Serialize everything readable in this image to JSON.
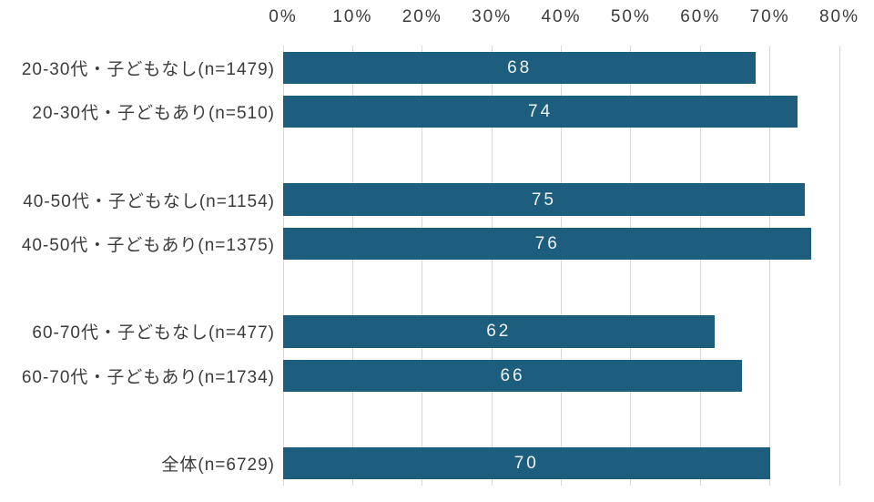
{
  "chart_data": {
    "type": "bar",
    "orientation": "horizontal",
    "categories": [
      "20-30代・子どもなし(n=1479)",
      "20-30代・子どもあり(n=510)",
      "40-50代・子どもなし(n=1154)",
      "40-50代・子どもあり(n=1375)",
      "60-70代・子どもなし(n=477)",
      "60-70代・子どもあり(n=1734)",
      "全体(n=6729)"
    ],
    "values": [
      68,
      74,
      75,
      76,
      62,
      66,
      70
    ],
    "spacer_after": [
      1,
      3,
      5
    ],
    "x_ticks": [
      "0%",
      "10%",
      "20%",
      "30%",
      "40%",
      "50%",
      "60%",
      "70%",
      "80%"
    ],
    "xlim": [
      0,
      80
    ],
    "xlabel": "",
    "ylabel": "",
    "title": "",
    "legend": "none",
    "grid": "vertical",
    "axis_position": "top",
    "colors": {
      "bar": "#1d5e7e",
      "value_label": "#f1f1f1",
      "gridline": "#d9d9d9",
      "axis_text": "#3b3b3b",
      "background": "#ffffff"
    }
  }
}
